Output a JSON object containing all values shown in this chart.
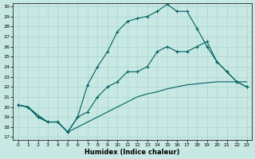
{
  "xlabel": "Humidex (Indice chaleur)",
  "bg_color": "#c8e8e4",
  "line_color": "#006060",
  "grid_color": "#a8d4d0",
  "ylim_min": 17,
  "ylim_max": 30,
  "xlim_min": 0,
  "xlim_max": 23,
  "yticks": [
    17,
    18,
    19,
    20,
    21,
    22,
    23,
    24,
    25,
    26,
    27,
    28,
    29,
    30
  ],
  "xticks": [
    0,
    1,
    2,
    3,
    4,
    5,
    6,
    7,
    8,
    9,
    10,
    11,
    12,
    13,
    14,
    15,
    16,
    17,
    18,
    19,
    20,
    21,
    22,
    23
  ],
  "s1_x": [
    0,
    1,
    2,
    3,
    4,
    5,
    6,
    7,
    8,
    9,
    10,
    11,
    12,
    13,
    14,
    15,
    16,
    17,
    18,
    19,
    20,
    21,
    22,
    23
  ],
  "s1_y": [
    20.2,
    20.0,
    19.0,
    18.5,
    18.5,
    17.5,
    19.0,
    22.2,
    24.0,
    25.5,
    27.5,
    28.5,
    28.8,
    29.0,
    29.5,
    30.2,
    29.5,
    29.5,
    27.8,
    26.0,
    24.5,
    23.5,
    22.5,
    22.0
  ],
  "s2_x": [
    0,
    1,
    2,
    3,
    4,
    5,
    6,
    7,
    8,
    9,
    10,
    11,
    12,
    13,
    14,
    15,
    16,
    17,
    18,
    19,
    20,
    21,
    22,
    23
  ],
  "s2_y": [
    20.2,
    20.0,
    19.0,
    18.5,
    18.5,
    17.5,
    19.0,
    19.5,
    21.0,
    22.0,
    22.5,
    23.5,
    23.5,
    24.0,
    25.5,
    26.0,
    25.5,
    25.5,
    26.0,
    26.5,
    24.5,
    23.5,
    22.5,
    22.0
  ],
  "s3_x": [
    0,
    1,
    2,
    3,
    4,
    5,
    6,
    7,
    8,
    9,
    10,
    11,
    12,
    13,
    14,
    15,
    16,
    17,
    18,
    19,
    20,
    21,
    22,
    23
  ],
  "s3_y": [
    20.2,
    20.0,
    19.2,
    18.5,
    18.5,
    17.5,
    18.0,
    18.5,
    19.0,
    19.5,
    20.0,
    20.5,
    21.0,
    21.3,
    21.5,
    21.8,
    22.0,
    22.2,
    22.3,
    22.4,
    22.5,
    22.5,
    22.5,
    22.5
  ]
}
